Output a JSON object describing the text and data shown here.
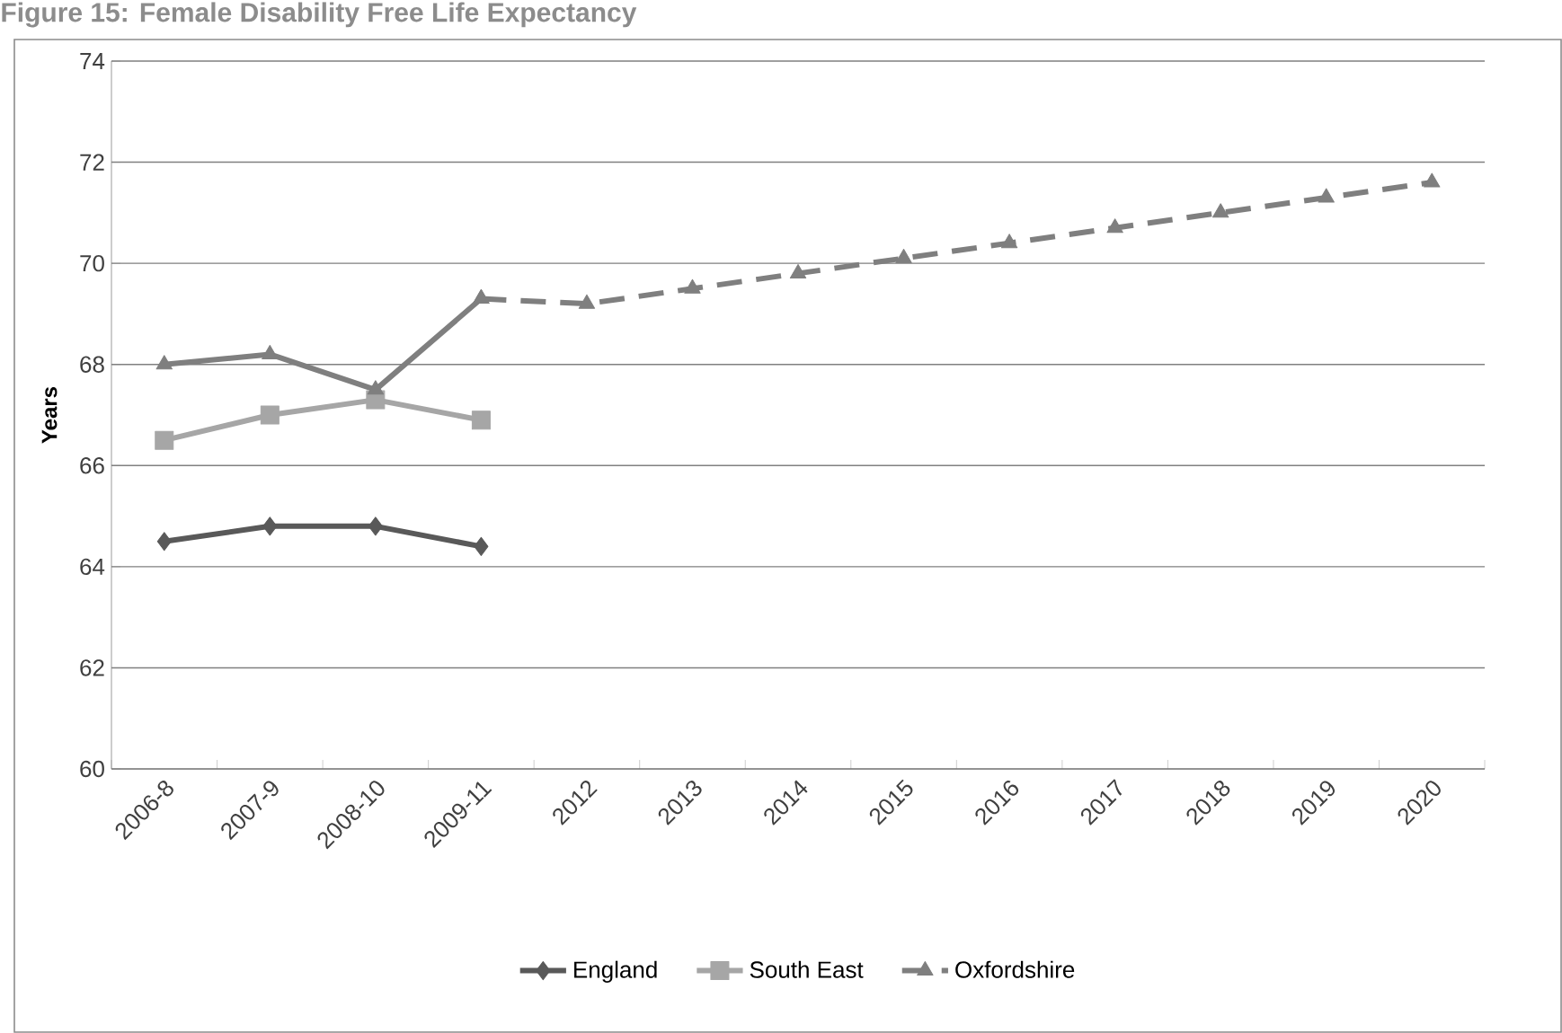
{
  "chart_data": {
    "type": "line",
    "title": "Figure 15: Female Disability Free Life Expectancy",
    "ylabel": "Years",
    "categories": [
      "2006-8",
      "2007-9",
      "2008-10",
      "2009-11",
      "2012",
      "2013",
      "2014",
      "2015",
      "2016",
      "2017",
      "2018",
      "2019",
      "2020"
    ],
    "series": [
      {
        "name": "England",
        "color": "#595959",
        "marker": "diamond",
        "line_style": "solid",
        "values": [
          64.5,
          64.8,
          64.8,
          64.4,
          null,
          null,
          null,
          null,
          null,
          null,
          null,
          null,
          null
        ]
      },
      {
        "name": "South East",
        "color": "#a6a6a6",
        "marker": "square",
        "line_style": "solid",
        "values": [
          66.5,
          67.0,
          67.3,
          66.9,
          null,
          null,
          null,
          null,
          null,
          null,
          null,
          null,
          null
        ]
      },
      {
        "color": "#7f7f7f",
        "marker": "triangle",
        "line_style": "solid",
        "values": [
          68.0,
          68.2,
          67.5,
          69.3,
          null,
          null,
          null,
          null,
          null,
          null,
          null,
          null,
          null
        ]
      },
      {
        "name": "Oxfordshire",
        "color": "#7f7f7f",
        "marker": "triangle",
        "line_style": "dashed",
        "values": [
          null,
          null,
          null,
          69.3,
          69.2,
          69.5,
          69.8,
          70.1,
          70.4,
          70.7,
          71.0,
          71.3,
          71.6
        ]
      }
    ],
    "ylim": [
      60,
      74
    ],
    "yticks": [
      60,
      62,
      64,
      66,
      68,
      70,
      72,
      74
    ],
    "grid": "y",
    "legend": "bottom"
  }
}
